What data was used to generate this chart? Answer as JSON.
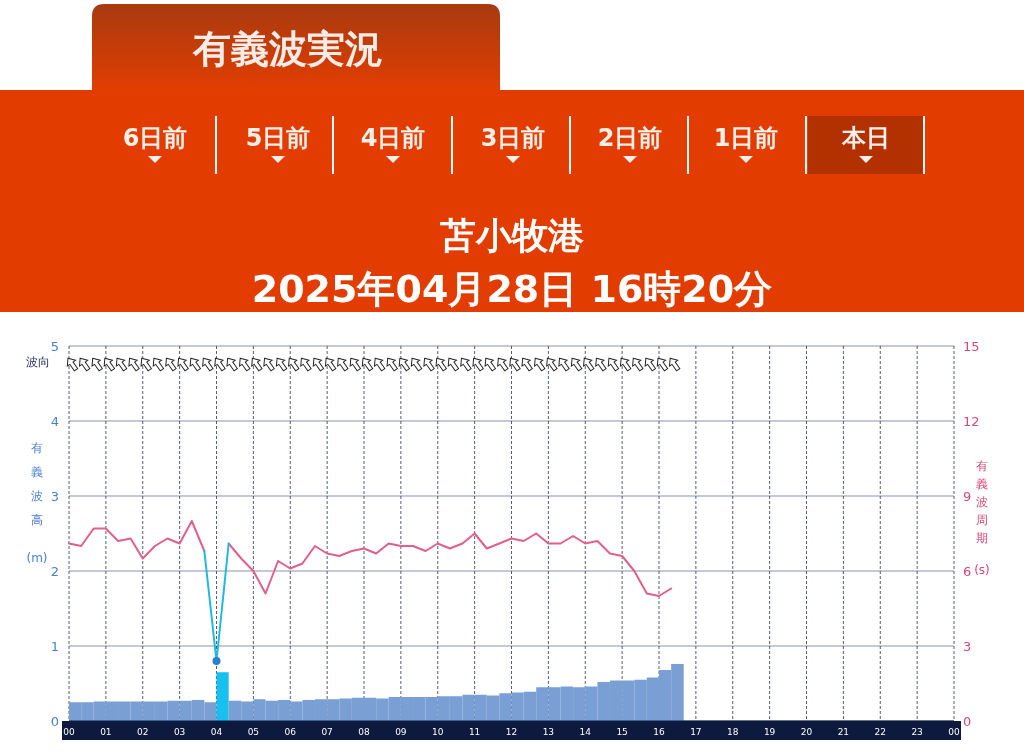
{
  "chart_data": {
    "type": "histogram",
    "title": "苫小牧港",
    "subtitle": "2025年04月28日 16時20分",
    "annotations": [
      "有義波実況",
      "6日前",
      "5日前",
      "4日前",
      "3日前",
      "2日前",
      "1日前",
      "本日",
      "波向"
    ],
    "ylabel": "有義波高(m)",
    "y2label": "有義波周期(s)",
    "bins": [
      0,
      0.33,
      0.67,
      1,
      1.33,
      1.67,
      2,
      2.33,
      2.67,
      3,
      3.33,
      3.67,
      4,
      4.33,
      4.67,
      5,
      5.33,
      5.67,
      6,
      6.33,
      6.67,
      7,
      7.33,
      7.67,
      8,
      8.33,
      8.67,
      9,
      9.33,
      9.67,
      10,
      10.33,
      10.67,
      11,
      11.33,
      11.67,
      12,
      12.33,
      12.67,
      13,
      13.33,
      13.67,
      14,
      14.33,
      14.67,
      15,
      15.33,
      15.67,
      16,
      16.33,
      16.67
    ],
    "series": [
      {
        "values": [
          0.25,
          0.25,
          0.26,
          0.26,
          0.26,
          0.26,
          0.26,
          0.26,
          0.27,
          0.27,
          0.28,
          0.25,
          0.65,
          0.27,
          0.26,
          0.29,
          0.27,
          0.28,
          0.26,
          0.28,
          0.29,
          0.29,
          0.3,
          0.31,
          0.31,
          0.3,
          0.32,
          0.32,
          0.32,
          0.32,
          0.33,
          0.33,
          0.35,
          0.35,
          0.34,
          0.37,
          0.38,
          0.39,
          0.45,
          0.45,
          0.46,
          0.45,
          0.46,
          0.52,
          0.54,
          0.54,
          0.55,
          0.58,
          0.68,
          0.76
        ],
        "colors": [
          "#7a9fd4",
          "#7a9fd4",
          "#7a9fd4",
          "#7a9fd4",
          "#7a9fd4",
          "#7a9fd4",
          "#7a9fd4",
          "#7a9fd4",
          "#7a9fd4",
          "#7a9fd4",
          "#7a9fd4",
          "#7a9fd4",
          "#17c0ee",
          "#7a9fd4",
          "#7a9fd4",
          "#7a9fd4",
          "#7a9fd4",
          "#7a9fd4",
          "#7a9fd4",
          "#7a9fd4",
          "#7a9fd4",
          "#7a9fd4",
          "#7a9fd4",
          "#7a9fd4",
          "#7a9fd4",
          "#7a9fd4",
          "#7a9fd4",
          "#7a9fd4",
          "#7a9fd4",
          "#7a9fd4",
          "#7a9fd4",
          "#7a9fd4",
          "#7a9fd4",
          "#7a9fd4",
          "#7a9fd4",
          "#7a9fd4",
          "#7a9fd4",
          "#7a9fd4",
          "#7a9fd4",
          "#7a9fd4",
          "#7a9fd4",
          "#7a9fd4",
          "#7a9fd4",
          "#7a9fd4",
          "#7a9fd4",
          "#7a9fd4",
          "#7a9fd4",
          "#7a9fd4",
          "#7a9fd4",
          "#7a9fd4"
        ]
      },
      {
        "type": "line",
        "axis": "y2",
        "color": "#e0608a",
        "x": [
          0,
          0.33,
          0.67,
          1,
          1.33,
          1.67,
          2,
          2.33,
          2.67,
          3,
          3.33,
          3.67,
          4,
          4.33,
          4.67,
          5,
          5.33,
          5.67,
          6,
          6.33,
          6.67,
          7,
          7.33,
          7.67,
          8,
          8.33,
          8.67,
          9,
          9.33,
          9.67,
          10,
          10.33,
          10.67,
          11,
          11.33,
          11.67,
          12,
          12.33,
          12.67,
          13,
          13.33,
          13.67,
          14,
          14.33,
          14.67,
          15,
          15.33,
          15.67,
          16,
          16.33
        ],
        "values": [
          7.1,
          7.0,
          7.7,
          7.7,
          7.2,
          7.3,
          6.5,
          7.0,
          7.3,
          7.1,
          8.0,
          6.8,
          null,
          7.1,
          6.5,
          6.0,
          5.1,
          6.4,
          6.1,
          6.3,
          7.0,
          6.7,
          6.6,
          6.8,
          6.9,
          6.7,
          7.1,
          7.0,
          7.0,
          6.8,
          7.1,
          6.9,
          7.1,
          7.5,
          6.9,
          7.1,
          7.3,
          7.2,
          7.5,
          7.1,
          7.1,
          7.4,
          7.1,
          7.2,
          6.7,
          6.6,
          6.0,
          5.1,
          5.0,
          5.3
        ]
      },
      {
        "type": "line",
        "axis": "y2",
        "color": "#22b8e0",
        "x": [
          3.67,
          4,
          4.33
        ],
        "values": [
          6.8,
          2.4,
          7.1
        ]
      },
      {
        "type": "scatter",
        "axis": "y2",
        "color": "#2a7fd0",
        "marker": "circle",
        "x": [
          4
        ],
        "values": [
          2.4
        ]
      }
    ],
    "xlim": [
      0,
      24
    ],
    "xticks": [
      {
        "value": 0,
        "label": "00"
      },
      {
        "value": 1,
        "label": "01"
      },
      {
        "value": 2,
        "label": "02"
      },
      {
        "value": 3,
        "label": "03"
      },
      {
        "value": 4,
        "label": "04"
      },
      {
        "value": 5,
        "label": "05"
      },
      {
        "value": 6,
        "label": "06"
      },
      {
        "value": 7,
        "label": "07"
      },
      {
        "value": 8,
        "label": "08"
      },
      {
        "value": 9,
        "label": "09"
      },
      {
        "value": 10,
        "label": "10"
      },
      {
        "value": 11,
        "label": "11"
      },
      {
        "value": 12,
        "label": "12"
      },
      {
        "value": 13,
        "label": "13"
      },
      {
        "value": 14,
        "label": "14"
      },
      {
        "value": 15,
        "label": "15"
      },
      {
        "value": 16,
        "label": "16"
      },
      {
        "value": 17,
        "label": "17"
      },
      {
        "value": 18,
        "label": "18"
      },
      {
        "value": 19,
        "label": "19"
      },
      {
        "value": 20,
        "label": "20"
      },
      {
        "value": 21,
        "label": "21"
      },
      {
        "value": 22,
        "label": "22"
      },
      {
        "value": 23,
        "label": "23"
      },
      {
        "value": 24,
        "label": "00"
      }
    ],
    "ylim": [
      0,
      5
    ],
    "yticks": [
      0,
      1,
      2,
      3,
      4,
      5
    ],
    "y2lim": [
      0,
      15
    ],
    "y2ticks": [
      0,
      3,
      6,
      9,
      12,
      15
    ],
    "grid": true
  }
}
